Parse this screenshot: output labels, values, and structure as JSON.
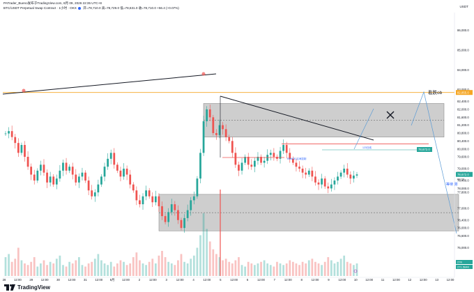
{
  "header": {
    "author": "PATrader_Bueno发布于TradingView.com, 8月 09, 2026 22:35 UTC+8",
    "symbol": "BTC/USDT Perpetual Swap Contract · 1小时 · OKX",
    "ohlc": "开=78,710.0  高=78,729.0  低=78,631.0  收=78,710.0  +56.4 (+0.07%)"
  },
  "currency": "USDT",
  "brand": "TradingView",
  "chart_data": {
    "type": "candlestick",
    "symbol": "BTC/USDT Perpetual Swap Contract",
    "interval": "1小时",
    "exchange": "OKX",
    "y_axis": {
      "ticks": [
        74000,
        75000,
        75600,
        76000,
        76400,
        77000,
        77800,
        78000,
        78400,
        78800,
        79000,
        79600,
        80000,
        80400,
        80800,
        81200,
        81600,
        82000,
        82400,
        83000,
        84000,
        85000,
        86000
      ],
      "labels": [
        "74,000.0",
        "75,000.0",
        "75,600.0",
        "76,000.0",
        "76,400.0",
        "77,000.0",
        "77,800.0",
        "78,000.0",
        "78,400.0",
        "78,800.0",
        "79,000.0",
        "79,600.0",
        "80,000.0",
        "80,400.0",
        "80,800.0",
        "81,200.0",
        "81,600.0",
        "82,000.0",
        "82,400.0",
        "83,000.0",
        "84,000.0",
        "85,000.0",
        "86,000.0"
      ]
    },
    "x_axis": {
      "labels": [
        "28",
        "12:00",
        "29",
        "12:00",
        "30",
        "12:00",
        "31",
        "12:00",
        "8月",
        "12:00",
        "2",
        "12:00",
        "3",
        "12:00",
        "4",
        "12:00",
        "5",
        "12:00",
        "6",
        "12:00",
        "7",
        "12:00",
        "8",
        "12:00",
        "9",
        "12:00",
        "10",
        "12:00",
        "11",
        "12:00",
        "12",
        "12:00",
        "13",
        "12:00"
      ]
    },
    "price_labels": {
      "top_level": "82,855.0",
      "current": "78,672.0",
      "current_sub": "00:23",
      "volume": "27K",
      "volume2": "271.564K"
    },
    "annotations": {
      "zone_label": "看跌ob",
      "range_label": "等待 测",
      "text_support": "RANGE 区间控制",
      "text_target": "123日线"
    },
    "levels": {
      "upper_zone": [
        80600,
        82300
      ],
      "lower_zone": [
        75850,
        77700
      ],
      "top_line": 82855,
      "red_line": 80250,
      "current": 78710,
      "support_line": 79000
    },
    "series": [
      {
        "name": "price",
        "values": [
          80780,
          80900,
          80600,
          80300,
          79800,
          80200,
          79600,
          79100,
          78700,
          78400,
          78900,
          79200,
          78800,
          78300,
          78600,
          78200,
          78500,
          78900,
          79300,
          78900,
          79100,
          78700,
          78300,
          78600,
          78800,
          78400,
          77900,
          77600,
          77800,
          78200,
          78600,
          79100,
          79500,
          79800,
          79200,
          78900,
          78600,
          79000,
          78700,
          78200,
          77900,
          77400,
          77200,
          77600,
          77900,
          77600,
          77300,
          77600,
          77100,
          76600,
          76300,
          76800,
          77200,
          76900,
          76400,
          76000,
          76500,
          76900,
          77400,
          77600,
          78500,
          79800,
          81400,
          82000,
          81600,
          80800,
          80700,
          81200,
          81000,
          80600,
          80400,
          79800,
          79200,
          78900,
          79300,
          79600,
          79200,
          79100,
          79400,
          79600,
          79300,
          79400,
          79700,
          79800,
          79600,
          79500,
          79900,
          80200,
          79800,
          79500,
          79300,
          79100,
          79000,
          78800,
          78700,
          78900,
          78600,
          78300,
          78200,
          78500,
          78100,
          78000,
          78200,
          78400,
          78600,
          78800,
          79000,
          78700,
          78500,
          78650,
          78710
        ]
      },
      {
        "name": "volume",
        "values": [
          12,
          14,
          9,
          11,
          18,
          10,
          8,
          7,
          9,
          12,
          6,
          8,
          10,
          7,
          9,
          8,
          11,
          13,
          7,
          6,
          9,
          8,
          10,
          12,
          7,
          6,
          8,
          9,
          11,
          14,
          10,
          8,
          7,
          9,
          6,
          8,
          10,
          9,
          7,
          8,
          12,
          15,
          10,
          8,
          7,
          9,
          11,
          8,
          13,
          16,
          12,
          9,
          8,
          7,
          10,
          14,
          9,
          8,
          11,
          13,
          18,
          26,
          40,
          30,
          22,
          17,
          14,
          12,
          10,
          11,
          9,
          8,
          10,
          12,
          7,
          6,
          9,
          8,
          7,
          8,
          9,
          10,
          8,
          7,
          6,
          9,
          8,
          7,
          8,
          10,
          9,
          8,
          7,
          9,
          8,
          10,
          11,
          9,
          8,
          7,
          9,
          12,
          10,
          8,
          9,
          11,
          13,
          9,
          8,
          7,
          8
        ]
      }
    ]
  }
}
